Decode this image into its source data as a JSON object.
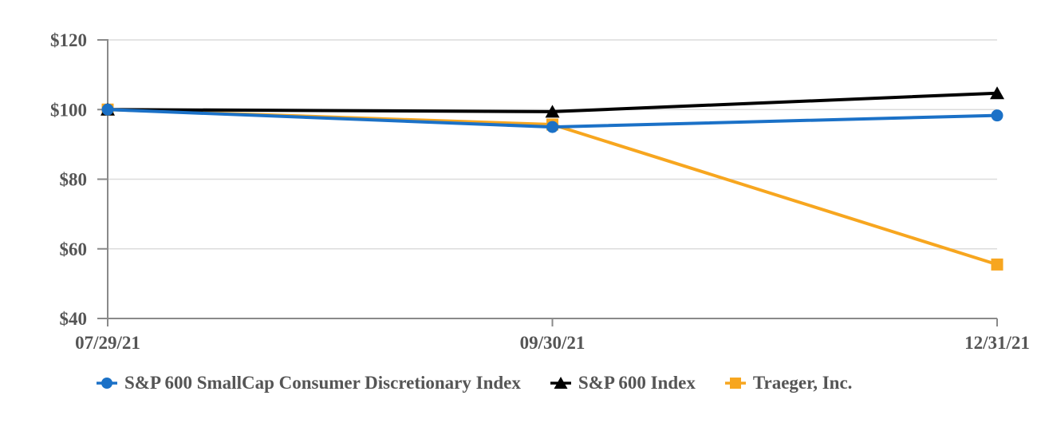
{
  "chart_data": {
    "type": "line",
    "title": "",
    "xlabel": "",
    "ylabel": "",
    "categories": [
      "07/29/21",
      "09/30/21",
      "12/31/21"
    ],
    "series": [
      {
        "name": "S&P 600 SmallCap Consumer Discretionary Index",
        "color": "#1B71C7",
        "marker": "circle",
        "values": [
          100.0,
          95.0,
          98.3
        ]
      },
      {
        "name": "S&P 600 Index",
        "color": "#000000",
        "marker": "triangle",
        "values": [
          100.0,
          99.4,
          104.7
        ]
      },
      {
        "name": "Traeger, Inc.",
        "color": "#F7A61F",
        "marker": "square",
        "values": [
          100.0,
          95.7,
          55.5
        ]
      }
    ],
    "y_ticks": [
      40,
      60,
      80,
      100,
      120
    ],
    "y_tick_labels": [
      "$40",
      "$60",
      "$80",
      "$100",
      "$120"
    ],
    "y_prefix": "$",
    "ylim": [
      40,
      120
    ],
    "grid": true,
    "legend_position": "bottom",
    "colors": {
      "grid": "#DCDCDC",
      "axis": "#8A8A8A",
      "text": "#555555",
      "background": "#FFFFFF"
    }
  }
}
